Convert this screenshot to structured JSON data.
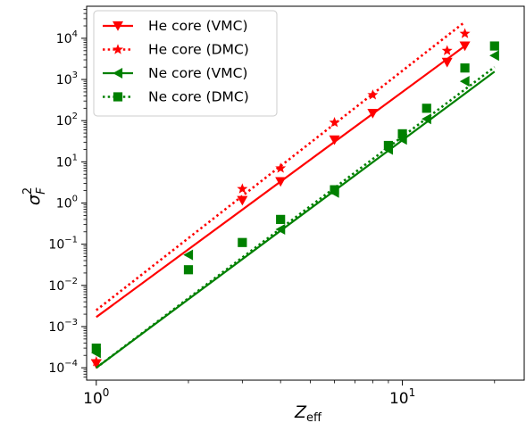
{
  "chart_data": {
    "type": "scatter",
    "title": "",
    "xlabel": "Z",
    "xlabel_sub": "eff",
    "ylabel": "σ",
    "ylabel_sup": "2",
    "ylabel_sub": "F",
    "xscale": "log",
    "yscale": "log",
    "xlim": [
      0.93,
      25
    ],
    "ylim": [
      5e-05,
      60000
    ],
    "grid": false,
    "legend_position": "top-left",
    "x_major_ticks": [
      {
        "value": 1,
        "base": "10",
        "exp": "0"
      },
      {
        "value": 10,
        "base": "10",
        "exp": "1"
      }
    ],
    "y_major_ticks": [
      {
        "value": 0.0001,
        "base": "10",
        "exp": "−4"
      },
      {
        "value": 0.001,
        "base": "10",
        "exp": "−3"
      },
      {
        "value": 0.01,
        "base": "10",
        "exp": "−2"
      },
      {
        "value": 0.1,
        "base": "10",
        "exp": "−1"
      },
      {
        "value": 1,
        "base": "10",
        "exp": "0"
      },
      {
        "value": 10,
        "base": "10",
        "exp": "1"
      },
      {
        "value": 100,
        "base": "10",
        "exp": "2"
      },
      {
        "value": 1000,
        "base": "10",
        "exp": "3"
      },
      {
        "value": 10000,
        "base": "10",
        "exp": "4"
      }
    ],
    "series": [
      {
        "name": "He core (VMC)",
        "color": "#ff0000",
        "marker": "triangle-down",
        "line_style": "solid",
        "points": [
          [
            1,
            0.000125
          ],
          [
            3,
            1.15
          ],
          [
            4,
            3.3
          ],
          [
            6,
            34
          ],
          [
            8,
            150
          ],
          [
            14,
            2600
          ],
          [
            16,
            6500
          ]
        ],
        "fit": [
          [
            1,
            0.0017
          ],
          [
            16,
            6500
          ]
        ]
      },
      {
        "name": "He core (DMC)",
        "color": "#ff0000",
        "marker": "star",
        "line_style": "dotted",
        "points": [
          [
            1,
            0.00014
          ],
          [
            3,
            2.2
          ],
          [
            4,
            7.0
          ],
          [
            6,
            90
          ],
          [
            8,
            420
          ],
          [
            14,
            5000
          ],
          [
            16,
            13000
          ]
        ],
        "fit": [
          [
            1,
            0.0025
          ],
          [
            16,
            25000
          ]
        ]
      },
      {
        "name": "Ne core (VMC)",
        "color": "#008000",
        "marker": "triangle-left",
        "line_style": "solid",
        "points": [
          [
            1,
            0.00023
          ],
          [
            2,
            0.055
          ],
          [
            4,
            0.23
          ],
          [
            6,
            1.8
          ],
          [
            9,
            20
          ],
          [
            10,
            35
          ],
          [
            12,
            110
          ],
          [
            16,
            900
          ],
          [
            20,
            3800
          ]
        ],
        "fit": [
          [
            1,
            0.0001
          ],
          [
            20,
            1550
          ]
        ]
      },
      {
        "name": "Ne core (DMC)",
        "color": "#008000",
        "marker": "square",
        "line_style": "dotted",
        "points": [
          [
            1,
            0.0003
          ],
          [
            2,
            0.024
          ],
          [
            3,
            0.11
          ],
          [
            4,
            0.4
          ],
          [
            6,
            2.1
          ],
          [
            9,
            25
          ],
          [
            10,
            48
          ],
          [
            12,
            200
          ],
          [
            16,
            1900
          ],
          [
            20,
            6500
          ]
        ],
        "fit": [
          [
            1,
            0.0001
          ],
          [
            20,
            2000
          ]
        ]
      }
    ]
  }
}
